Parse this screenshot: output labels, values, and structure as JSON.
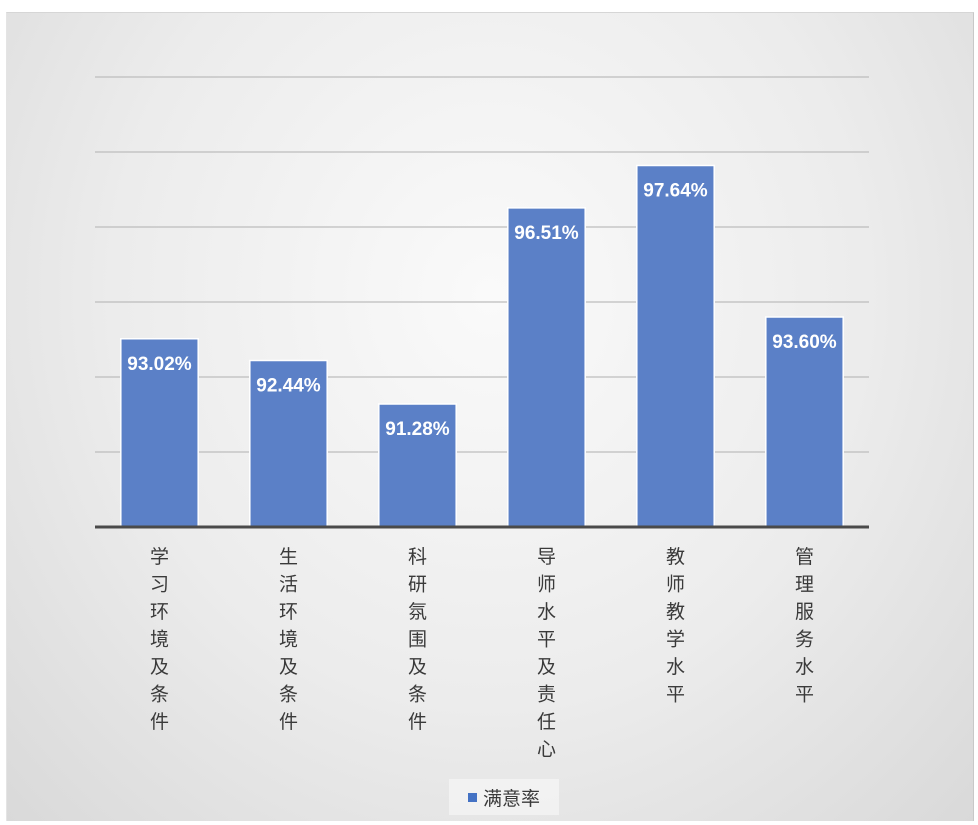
{
  "chart_data": {
    "type": "bar",
    "categories": [
      "学习环境及条件",
      "生活环境及条件",
      "科研氛围及条件",
      "导师水平及责任心",
      "教师教学水平",
      "管理服务水平"
    ],
    "series": [
      {
        "name": "满意率",
        "values": [
          93.02,
          92.44,
          91.28,
          96.51,
          97.64,
          93.6
        ]
      }
    ],
    "data_labels": [
      "93.02%",
      "92.44%",
      "91.28%",
      "96.51%",
      "97.64%",
      "93.60%"
    ],
    "title": "",
    "xlabel": "",
    "ylabel": "",
    "ylim": [
      88,
      100
    ],
    "y_tick_step": 2,
    "y_tick_labels_shown": false,
    "grid": true,
    "legend_position": "bottom",
    "colors": {
      "bar": "#5b80c7",
      "legend_swatch": "#4472c4"
    }
  }
}
